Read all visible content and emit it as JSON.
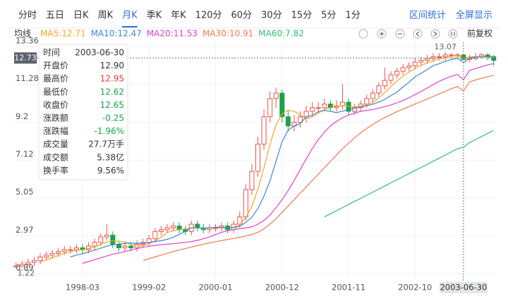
{
  "tabs": [
    "分时",
    "五日",
    "日K",
    "周K",
    "月K",
    "季K",
    "年K",
    "120分",
    "60分",
    "30分",
    "15分",
    "5分",
    "1分"
  ],
  "active_tab": "月K",
  "right_links": [
    "区间统计",
    "全屏显示"
  ],
  "ma_label": "均线",
  "adjust_label": "前复权",
  "tooltip": [
    {
      "label": "时间",
      "value": "2003-06-30",
      "color": "#333333"
    },
    {
      "label": "开盘价",
      "value": "12.90",
      "color": "#333333"
    },
    {
      "label": "最高价",
      "value": "12.95",
      "color": "#e23b3b"
    },
    {
      "label": "最低价",
      "value": "12.62",
      "color": "#1aa34a"
    },
    {
      "label": "收盘价",
      "value": "12.65",
      "color": "#1aa34a"
    },
    {
      "label": "涨跌额",
      "value": "-0.25",
      "color": "#1aa34a"
    },
    {
      "label": "涨跌幅",
      "value": "-1.96%",
      "color": "#1aa34a"
    },
    {
      "label": "成交量",
      "value": "27.7万手",
      "color": "#333333"
    },
    {
      "label": "成交额",
      "value": "5.38亿",
      "color": "#333333"
    },
    {
      "label": "换手率",
      "value": "9.56%",
      "color": "#333333"
    }
  ],
  "chart_data": {
    "type": "candlestick",
    "categories": [
      "1997-04",
      "1997-05",
      "1997-06",
      "1997-07",
      "1997-08",
      "1997-09",
      "1997-10",
      "1997-11",
      "1997-12",
      "1998-01",
      "1998-02",
      "1998-03",
      "1998-04",
      "1998-05",
      "1998-06",
      "1998-07",
      "1998-08",
      "1998-09",
      "1998-10",
      "1998-11",
      "1998-12",
      "1999-01",
      "1999-02",
      "1999-03",
      "1999-04",
      "1999-05",
      "1999-06",
      "1999-07",
      "1999-08",
      "1999-09",
      "1999-10",
      "1999-11",
      "1999-12",
      "2000-01",
      "2000-02",
      "2000-03",
      "2000-04",
      "2000-05",
      "2000-06",
      "2000-07",
      "2000-08",
      "2000-09",
      "2000-10",
      "2000-11",
      "2000-12",
      "2001-01",
      "2001-02",
      "2001-03",
      "2001-04",
      "2001-05",
      "2001-06",
      "2001-07",
      "2001-08",
      "2001-09",
      "2001-10",
      "2001-11",
      "2001-12",
      "2002-01",
      "2002-02",
      "2002-03",
      "2002-04",
      "2002-05",
      "2002-06",
      "2002-07",
      "2002-08",
      "2002-09",
      "2002-10",
      "2002-11",
      "2002-12",
      "2003-01",
      "2003-02",
      "2003-03",
      "2003-04",
      "2003-05",
      "2003-06",
      "2003-07",
      "2003-08",
      "2003-09",
      "2003-10",
      "2003-11"
    ],
    "open": [
      1.25,
      1.3,
      1.4,
      1.5,
      1.6,
      1.8,
      1.9,
      2.0,
      2.1,
      2.2,
      2.2,
      2.3,
      2.2,
      2.4,
      2.6,
      2.9,
      3.0,
      2.5,
      2.3,
      2.4,
      2.3,
      2.5,
      2.6,
      2.8,
      3.2,
      3.3,
      3.4,
      3.5,
      3.3,
      3.2,
      3.6,
      3.4,
      3.3,
      3.4,
      3.4,
      3.5,
      3.3,
      3.6,
      4.0,
      5.5,
      6.5,
      8.0,
      9.5,
      10.5,
      10.8,
      9.5,
      9.0,
      9.2,
      9.5,
      9.8,
      10.0,
      10.0,
      10.2,
      10.0,
      10.1,
      10.3,
      9.8,
      10.0,
      10.2,
      10.5,
      10.8,
      11.2,
      11.5,
      11.8,
      12.0,
      12.2,
      12.3,
      12.5,
      12.6,
      12.7,
      12.8,
      12.8,
      12.9,
      12.9,
      12.9,
      12.65,
      12.7,
      12.8,
      12.9,
      12.8
    ],
    "high": [
      1.5,
      1.6,
      1.7,
      1.8,
      2.0,
      2.1,
      2.2,
      2.3,
      2.4,
      2.4,
      2.5,
      2.5,
      2.6,
      2.8,
      3.1,
      3.6,
      3.2,
      2.7,
      2.6,
      2.6,
      2.7,
      2.8,
      3.0,
      3.4,
      3.5,
      3.6,
      3.7,
      3.7,
      3.5,
      3.8,
      3.8,
      3.6,
      3.6,
      3.6,
      3.7,
      3.7,
      3.8,
      4.3,
      5.8,
      6.9,
      8.4,
      9.9,
      10.9,
      11.1,
      11.0,
      9.9,
      9.6,
      9.8,
      10.1,
      10.3,
      10.3,
      10.5,
      10.4,
      10.4,
      11.3,
      10.5,
      10.2,
      10.4,
      10.7,
      11.0,
      11.4,
      12.2,
      12.0,
      12.2,
      12.4,
      12.5,
      12.7,
      12.8,
      12.9,
      13.0,
      13.0,
      13.07,
      13.0,
      13.0,
      12.95,
      12.9,
      13.0,
      13.0,
      13.0,
      12.9
    ],
    "low": [
      1.22,
      1.25,
      1.3,
      1.3,
      1.4,
      1.6,
      1.7,
      1.8,
      1.9,
      2.0,
      2.0,
      2.0,
      2.0,
      2.2,
      2.4,
      2.7,
      2.3,
      2.1,
      2.1,
      2.1,
      2.1,
      2.3,
      2.4,
      2.6,
      3.0,
      3.1,
      3.2,
      3.1,
      3.0,
      3.0,
      3.2,
      3.1,
      3.1,
      3.2,
      3.2,
      3.1,
      3.1,
      3.4,
      3.8,
      5.2,
      6.2,
      7.7,
      9.2,
      10.0,
      9.2,
      8.7,
      8.7,
      8.9,
      9.2,
      9.5,
      9.7,
      9.8,
      9.8,
      9.8,
      9.9,
      9.6,
      9.6,
      9.8,
      10.0,
      10.3,
      10.6,
      11.0,
      11.3,
      11.6,
      11.8,
      12.0,
      12.1,
      12.3,
      12.4,
      12.5,
      12.6,
      12.6,
      12.7,
      12.7,
      12.62,
      12.5,
      12.6,
      12.7,
      12.6,
      12.3
    ],
    "close": [
      1.3,
      1.4,
      1.5,
      1.6,
      1.8,
      1.9,
      2.0,
      2.1,
      2.2,
      2.2,
      2.3,
      2.2,
      2.4,
      2.6,
      2.9,
      3.0,
      2.5,
      2.3,
      2.4,
      2.3,
      2.5,
      2.6,
      2.8,
      3.2,
      3.3,
      3.4,
      3.5,
      3.3,
      3.2,
      3.6,
      3.4,
      3.3,
      3.4,
      3.4,
      3.5,
      3.3,
      3.6,
      4.0,
      5.5,
      6.5,
      8.0,
      9.5,
      10.5,
      10.8,
      9.5,
      9.0,
      9.2,
      9.5,
      9.8,
      10.0,
      10.0,
      10.2,
      10.0,
      10.1,
      10.3,
      9.8,
      10.0,
      10.2,
      10.5,
      10.8,
      11.2,
      11.5,
      11.8,
      12.0,
      12.2,
      12.3,
      12.5,
      12.6,
      12.7,
      12.8,
      12.8,
      12.9,
      12.9,
      12.9,
      12.65,
      12.7,
      12.8,
      12.9,
      12.8,
      12.6
    ],
    "up_color": "#e9534b",
    "down_color": "#1aa34a",
    "series": [
      {
        "name": "MA5:12.71",
        "color": "#f5a623",
        "values": [
          null,
          null,
          null,
          null,
          1.52,
          1.64,
          1.76,
          1.88,
          2.0,
          2.08,
          2.16,
          2.2,
          2.26,
          2.34,
          2.48,
          2.62,
          2.68,
          2.66,
          2.62,
          2.5,
          2.4,
          2.42,
          2.52,
          2.68,
          2.88,
          3.14,
          3.24,
          3.3,
          3.34,
          3.4,
          3.4,
          3.36,
          3.38,
          3.42,
          3.4,
          3.38,
          3.44,
          3.56,
          3.98,
          4.58,
          5.52,
          6.7,
          7.96,
          9.06,
          9.66,
          9.86,
          9.8,
          9.6,
          9.4,
          9.5,
          9.7,
          9.9,
          10.0,
          10.06,
          10.12,
          10.08,
          10.04,
          10.08,
          10.16,
          10.26,
          10.54,
          10.84,
          11.16,
          11.46,
          11.74,
          11.96,
          12.16,
          12.32,
          12.46,
          12.58,
          12.68,
          12.76,
          12.82,
          12.86,
          12.71,
          12.79,
          12.79,
          12.79,
          12.77,
          12.76
        ]
      },
      {
        "name": "MA10:12.47",
        "color": "#3b87d6",
        "values": [
          null,
          null,
          null,
          null,
          null,
          null,
          null,
          null,
          null,
          1.8,
          1.9,
          1.98,
          2.07,
          2.17,
          2.28,
          2.39,
          2.47,
          2.5,
          2.55,
          2.57,
          2.54,
          2.55,
          2.59,
          2.65,
          2.69,
          2.77,
          2.88,
          3.04,
          3.21,
          3.4,
          3.41,
          3.38,
          3.39,
          3.43,
          3.43,
          3.39,
          3.41,
          3.49,
          3.7,
          3.99,
          4.45,
          5.14,
          5.97,
          7.06,
          8.13,
          8.76,
          9.0,
          9.13,
          9.5,
          9.58,
          9.78,
          9.85,
          9.8,
          9.73,
          9.81,
          9.89,
          9.97,
          10.04,
          10.11,
          10.19,
          10.31,
          10.46,
          10.66,
          10.86,
          11.14,
          11.4,
          11.7,
          11.89,
          12.1,
          12.31,
          12.42,
          12.55,
          12.64,
          12.72,
          12.47,
          12.74,
          12.78,
          12.81,
          12.82,
          12.8
        ]
      },
      {
        "name": "MA20:11.53",
        "color": "#e23fc8",
        "values": [
          null,
          null,
          null,
          null,
          null,
          null,
          null,
          null,
          null,
          null,
          null,
          1.45,
          1.55,
          1.65,
          1.75,
          1.85,
          1.95,
          2.02,
          2.1,
          2.18,
          2.26,
          2.33,
          2.39,
          2.44,
          2.47,
          2.5,
          2.53,
          2.56,
          2.6,
          2.65,
          2.71,
          2.8,
          2.9,
          3.03,
          3.15,
          3.25,
          3.3,
          3.35,
          3.39,
          3.45,
          3.6,
          3.8,
          4.1,
          4.5,
          4.95,
          5.45,
          6.0,
          6.6,
          7.2,
          7.75,
          8.25,
          8.65,
          9.0,
          9.25,
          9.45,
          9.6,
          9.7,
          9.8,
          9.85,
          9.9,
          9.98,
          10.06,
          10.15,
          10.26,
          10.4,
          10.55,
          10.72,
          10.9,
          11.08,
          11.27,
          11.45,
          11.6,
          11.72,
          11.83,
          11.53,
          12.05,
          12.15,
          12.25,
          12.35,
          12.42
        ]
      },
      {
        "name": "MA30:10.91",
        "color": "#f4774f",
        "values": [
          null,
          null,
          null,
          null,
          null,
          null,
          null,
          null,
          null,
          null,
          null,
          null,
          null,
          null,
          null,
          null,
          null,
          null,
          null,
          null,
          null,
          1.6,
          1.7,
          1.8,
          1.9,
          2.0,
          2.1,
          2.18,
          2.26,
          2.34,
          2.42,
          2.5,
          2.57,
          2.64,
          2.7,
          2.76,
          2.82,
          2.88,
          2.95,
          3.03,
          3.15,
          3.35,
          3.6,
          3.9,
          4.25,
          4.6,
          4.95,
          5.3,
          5.65,
          6.0,
          6.35,
          6.7,
          7.05,
          7.4,
          7.75,
          8.05,
          8.35,
          8.62,
          8.86,
          9.08,
          9.28,
          9.46,
          9.62,
          9.78,
          9.92,
          10.06,
          10.2,
          10.34,
          10.48,
          10.62,
          10.76,
          10.9,
          11.04,
          11.17,
          10.91,
          11.42,
          11.52,
          11.62,
          11.7,
          11.78
        ]
      },
      {
        "name": "MA60:7.82",
        "color": "#2fbf6f",
        "values": [
          null,
          null,
          null,
          null,
          null,
          null,
          null,
          null,
          null,
          null,
          null,
          null,
          null,
          null,
          null,
          null,
          null,
          null,
          null,
          null,
          null,
          null,
          null,
          null,
          null,
          null,
          null,
          null,
          null,
          null,
          null,
          null,
          null,
          null,
          null,
          null,
          null,
          null,
          null,
          null,
          null,
          null,
          null,
          null,
          null,
          null,
          null,
          null,
          null,
          null,
          null,
          4.0,
          4.17,
          4.34,
          4.51,
          4.68,
          4.85,
          5.02,
          5.19,
          5.36,
          5.53,
          5.7,
          5.87,
          6.04,
          6.21,
          6.38,
          6.55,
          6.72,
          6.89,
          7.06,
          7.23,
          7.4,
          7.57,
          7.74,
          7.82,
          8.08,
          8.25,
          8.42,
          8.59,
          8.75
        ]
      }
    ],
    "ylim": [
      0.89,
      13.36
    ],
    "yticks": [
      0.89,
      2.97,
      5.05,
      7.12,
      9.2,
      11.28,
      13.36
    ],
    "ytick_labels_text": null,
    "xticks": [
      "1998-03",
      "1999-02",
      "2000-01",
      "2000-12",
      "2001-11",
      "2002-10"
    ],
    "grid": true,
    "max_label": 13.07,
    "min_label": 1.22,
    "crosshair": {
      "date": "2003-06-30",
      "price": 12.73,
      "index_date": "2003-06"
    }
  }
}
